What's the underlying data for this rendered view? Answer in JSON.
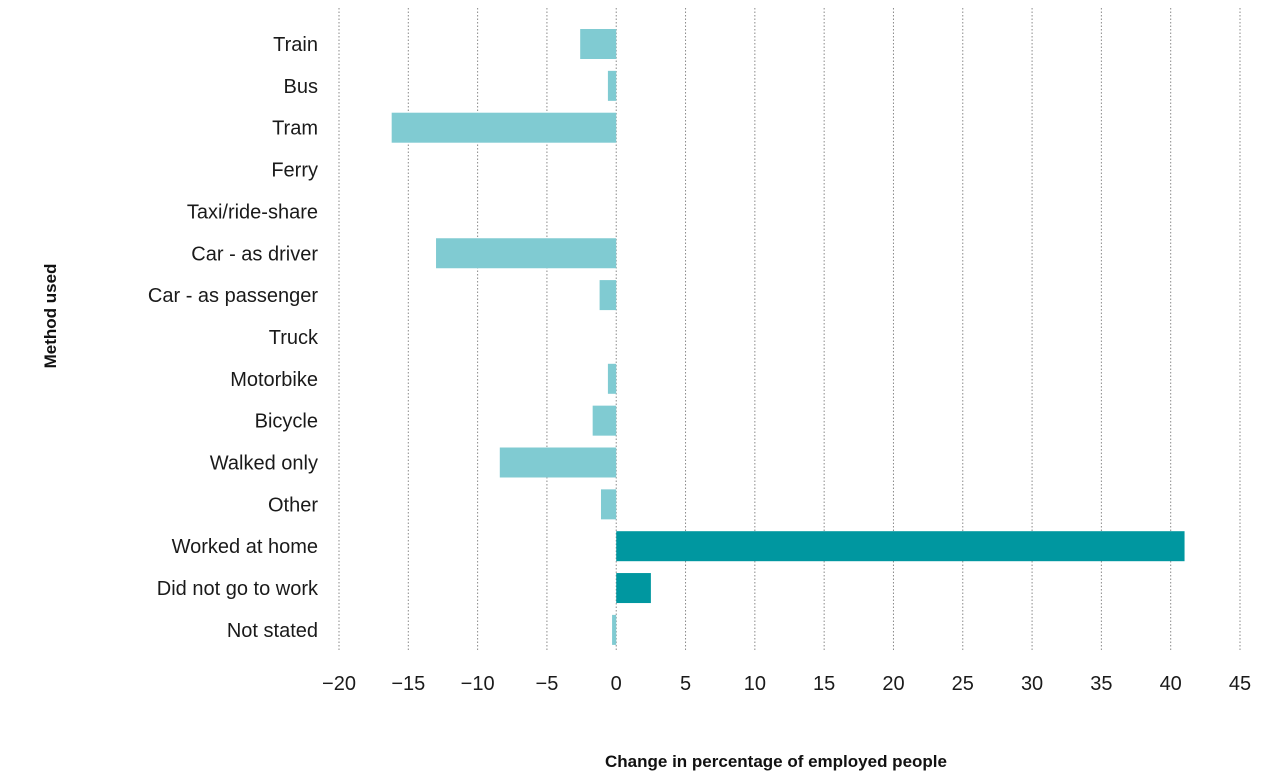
{
  "chart_data": {
    "type": "bar",
    "orientation": "horizontal",
    "categories": [
      "Train",
      "Bus",
      "Tram",
      "Ferry",
      "Taxi/ride-share",
      "Car - as driver",
      "Car - as passenger",
      "Truck",
      "Motorbike",
      "Bicycle",
      "Walked only",
      "Other",
      "Worked at home",
      "Did not go to work",
      "Not stated"
    ],
    "values": [
      -2.6,
      -0.6,
      -16.2,
      0,
      0,
      -13,
      -1.2,
      0,
      -0.6,
      -1.7,
      -8.4,
      -1.1,
      41,
      2.5,
      -0.3
    ],
    "highlight": [
      false,
      false,
      false,
      false,
      false,
      false,
      false,
      false,
      false,
      false,
      false,
      false,
      true,
      true,
      false
    ],
    "colors": {
      "default": "#80cbd2",
      "highlight": "#0097a0"
    },
    "xlabel": "Change in percentage of employed people",
    "ylabel": "Method used",
    "xlim": [
      -20,
      45
    ],
    "xticks": [
      -20,
      -15,
      -10,
      -5,
      0,
      5,
      10,
      15,
      20,
      25,
      30,
      35,
      40,
      45
    ],
    "xtick_labels": [
      "−20",
      "−15",
      "−10",
      "−5",
      "0",
      "5",
      "10",
      "15",
      "20",
      "25",
      "30",
      "35",
      "40",
      "45"
    ],
    "grid": "vertical dotted",
    "legend": "none"
  }
}
